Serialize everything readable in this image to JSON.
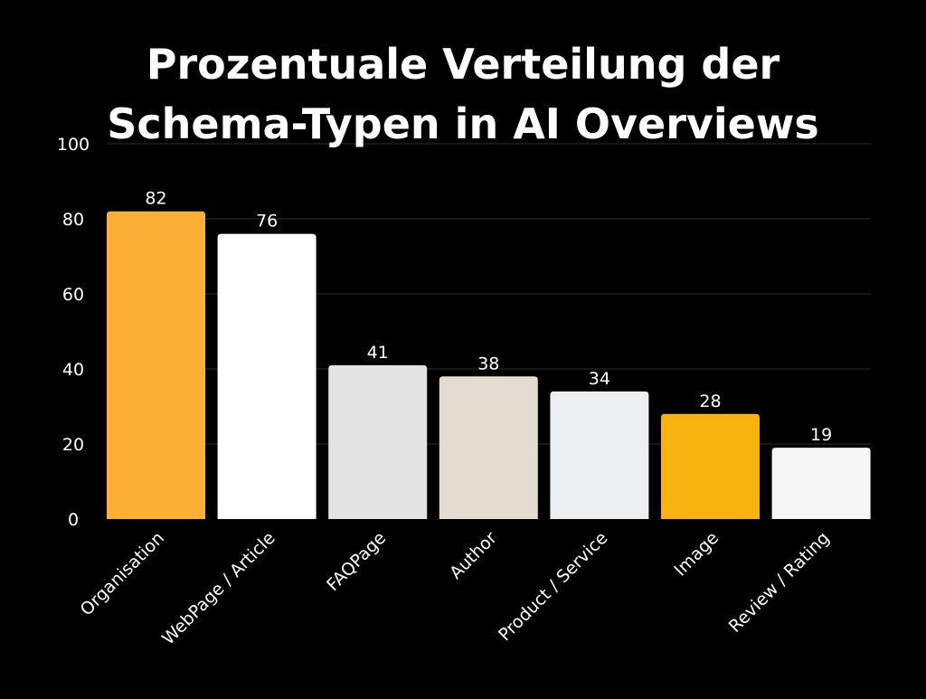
{
  "chart_data": {
    "type": "bar",
    "title_lines": [
      "Prozentuale Verteilung der",
      "Schema-Typen in AI Overviews"
    ],
    "categories": [
      "Organisation",
      "WebPage / Article",
      "FAQPage",
      "Author",
      "Product / Service",
      "Image",
      "Review / Rating"
    ],
    "values": [
      82,
      76,
      41,
      38,
      34,
      28,
      19
    ],
    "bar_colors": [
      "#FBAF35",
      "#FFFFFF",
      "#E3E3E3",
      "#E3DCCF",
      "#EBEFF2",
      "#F9B310",
      "#F6F6F6"
    ],
    "ylim": [
      0,
      100
    ],
    "yticks": [
      0,
      20,
      40,
      60,
      80,
      100
    ],
    "grid": true,
    "legend": "none",
    "data_labels": true
  }
}
